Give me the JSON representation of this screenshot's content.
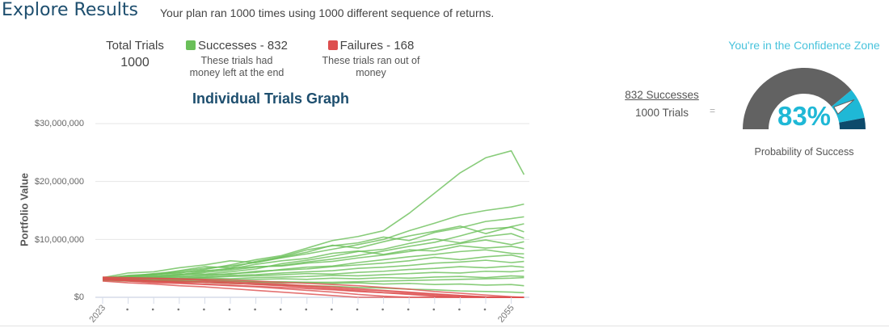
{
  "header": {
    "title": "Explore Results",
    "subtitle": "Your plan ran 1000 times using 1000 different sequence of returns."
  },
  "summary": {
    "total_label": "Total Trials",
    "total_value": "1000",
    "successes_label": "Successes - 832",
    "successes_desc": "These trials had money left at the end",
    "failures_label": "Failures - 168",
    "failures_desc": "These trials ran out of money"
  },
  "colors": {
    "success": "#6abf59",
    "failure": "#dd4f4f",
    "gauge_gray": "#626262",
    "gauge_cyan": "#1fb8d6",
    "gauge_navy": "#0d4a6b",
    "title": "#1d4e6e"
  },
  "gauge": {
    "zone_label": "You're in the Confidence Zone",
    "fraction_numerator": "832 Successes",
    "fraction_denominator": "1000 Trials",
    "equals": "=",
    "percent_label": "83%",
    "probability": 0.83,
    "caption": "Probability of Success"
  },
  "chart_data": {
    "type": "line",
    "title": "Individual Trials Graph",
    "xlabel": "",
    "ylabel": "Portfolio Value",
    "ylim": [
      0,
      30000000
    ],
    "yticks": [
      0,
      10000000,
      20000000,
      30000000
    ],
    "ytick_labels": [
      "$0",
      "$10,000,000",
      "$20,000,000",
      "$30,000,000"
    ],
    "xtick_labels": [
      "2023",
      "•",
      "•",
      "•",
      "•",
      "•",
      "•",
      "•",
      "•",
      "•",
      "•",
      "•",
      "•",
      "•",
      "•",
      "•",
      "2055"
    ],
    "xticks": [
      2023,
      2025,
      2027,
      2029,
      2031,
      2033,
      2035,
      2037,
      2039,
      2041,
      2043,
      2045,
      2047,
      2049,
      2051,
      2053,
      2055
    ],
    "grid": true,
    "x": [
      2023,
      2025,
      2027,
      2029,
      2031,
      2033,
      2035,
      2037,
      2039,
      2041,
      2043,
      2045,
      2047,
      2049,
      2051,
      2053,
      2055,
      2056
    ],
    "success_series": [
      [
        3300000,
        3800000,
        4000000,
        4200000,
        4800000,
        5600000,
        6500000,
        7200000,
        8500000,
        9800000,
        10500000,
        11500000,
        14500000,
        18000000,
        21500000,
        24100000,
        25300000,
        21200000
      ],
      [
        3200000,
        3600000,
        4100000,
        4500000,
        5000000,
        5400000,
        6000000,
        6800000,
        7500000,
        8300000,
        9100000,
        10000000,
        11500000,
        12800000,
        14200000,
        15000000,
        15600000,
        16100000
      ],
      [
        3100000,
        3400000,
        3900000,
        4600000,
        5300000,
        5100000,
        6200000,
        7000000,
        8200000,
        8900000,
        9400000,
        10400000,
        9800000,
        11200000,
        12000000,
        13100000,
        13600000,
        13900000
      ],
      [
        3400000,
        4200000,
        4400000,
        5100000,
        5600000,
        6300000,
        6000000,
        6900000,
        7800000,
        9000000,
        8500000,
        9600000,
        10600000,
        11400000,
        12300000,
        11000000,
        12200000,
        12700000
      ],
      [
        3000000,
        3300000,
        3500000,
        3800000,
        4300000,
        4700000,
        5200000,
        5500000,
        6100000,
        6600000,
        7200000,
        8000000,
        8800000,
        9500000,
        10600000,
        11800000,
        12100000,
        11300000
      ],
      [
        3200000,
        3500000,
        3700000,
        4000000,
        4000000,
        4400000,
        4900000,
        5800000,
        6400000,
        7100000,
        7900000,
        8300000,
        9300000,
        10100000,
        9400000,
        10500000,
        11000000,
        10200000
      ],
      [
        3100000,
        3200000,
        3600000,
        3900000,
        4500000,
        5000000,
        5300000,
        5400000,
        5900000,
        6200000,
        6800000,
        7300000,
        7900000,
        8600000,
        9300000,
        9900000,
        9100000,
        9600000
      ],
      [
        3300000,
        3700000,
        3900000,
        4300000,
        4600000,
        4900000,
        5700000,
        6300000,
        6700000,
        7600000,
        8000000,
        7400000,
        8200000,
        8000000,
        8900000,
        8500000,
        8800000,
        8400000
      ],
      [
        3000000,
        3200000,
        3300000,
        3500000,
        3700000,
        4100000,
        4300000,
        4800000,
        5200000,
        5400000,
        6000000,
        6500000,
        7000000,
        7400000,
        7900000,
        8200000,
        7600000,
        7500000
      ],
      [
        3200000,
        3300000,
        3400000,
        3600000,
        3900000,
        4000000,
        4500000,
        4700000,
        4900000,
        5300000,
        5600000,
        5900000,
        6300000,
        6900000,
        6500000,
        7000000,
        7300000,
        6800000
      ],
      [
        3100000,
        3000000,
        3200000,
        3300000,
        3500000,
        3800000,
        3900000,
        4200000,
        4400000,
        4600000,
        5000000,
        5200000,
        5500000,
        5900000,
        6100000,
        6400000,
        6000000,
        6200000
      ],
      [
        3200000,
        3100000,
        3300000,
        3200000,
        3400000,
        3600000,
        3700000,
        3900000,
        4100000,
        4000000,
        4300000,
        4500000,
        4800000,
        5000000,
        5300000,
        5100000,
        5400000,
        5200000
      ],
      [
        3000000,
        3100000,
        3000000,
        3200000,
        3300000,
        3200000,
        3400000,
        3500000,
        3600000,
        3800000,
        3700000,
        3900000,
        4100000,
        4300000,
        4200000,
        4500000,
        4400000,
        4600000
      ],
      [
        3100000,
        3000000,
        2900000,
        3000000,
        3100000,
        3000000,
        3100000,
        3200000,
        3100000,
        3300000,
        3200000,
        3400000,
        3300000,
        3500000,
        3600000,
        3400000,
        3700000,
        3600000
      ],
      [
        3100000,
        3000000,
        3000000,
        2900000,
        2900000,
        2800000,
        2700000,
        2700000,
        2600000,
        2600000,
        2700000,
        2800000,
        2900000,
        3000000,
        3100000,
        3200000,
        3300000,
        3400000
      ],
      [
        2900000,
        2800000,
        2700000,
        2800000,
        2600000,
        2700000,
        2600000,
        2500000,
        2600000,
        2400000,
        2500000,
        2300000,
        2400000,
        2200000,
        2300000,
        2100000,
        2200000,
        2000000
      ],
      [
        3000000,
        2900000,
        2800000,
        2700000,
        2600000,
        2400000,
        2300000,
        2100000,
        2000000,
        1900000,
        1700000,
        1600000,
        1400000,
        1300000,
        1100000,
        1000000,
        900000,
        800000
      ]
    ],
    "failure_series": [
      [
        3400000,
        3300000,
        3200000,
        3100000,
        2900000,
        2700000,
        2500000,
        2300000,
        2000000,
        1800000,
        1500000,
        1200000,
        900000,
        600000,
        300000,
        100000,
        0,
        0
      ],
      [
        3200000,
        3000000,
        2800000,
        2600000,
        2700000,
        2500000,
        2200000,
        2000000,
        1700000,
        1400000,
        1100000,
        800000,
        500000,
        200000,
        0,
        0,
        0,
        0
      ],
      [
        3000000,
        2800000,
        2500000,
        2400000,
        2200000,
        2000000,
        1800000,
        1500000,
        1200000,
        900000,
        500000,
        200000,
        0,
        0,
        0,
        0,
        0,
        0
      ],
      [
        3500000,
        3400000,
        3300000,
        3200000,
        3100000,
        3000000,
        2800000,
        2600000,
        2400000,
        2200000,
        2000000,
        1700000,
        1400000,
        1000000,
        700000,
        400000,
        100000,
        0
      ],
      [
        2800000,
        2500000,
        2300000,
        2000000,
        1800000,
        1500000,
        1200000,
        900000,
        600000,
        300000,
        0,
        0,
        0,
        0,
        0,
        0,
        0,
        0
      ],
      [
        3300000,
        3100000,
        2900000,
        2800000,
        2600000,
        2400000,
        2300000,
        2100000,
        1900000,
        1600000,
        1300000,
        1100000,
        800000,
        500000,
        300000,
        0,
        0,
        0
      ],
      [
        3100000,
        2900000,
        2700000,
        2500000,
        2300000,
        2100000,
        1900000,
        1700000,
        1500000,
        1300000,
        1000000,
        800000,
        600000,
        300000,
        100000,
        0,
        0,
        0
      ]
    ]
  }
}
